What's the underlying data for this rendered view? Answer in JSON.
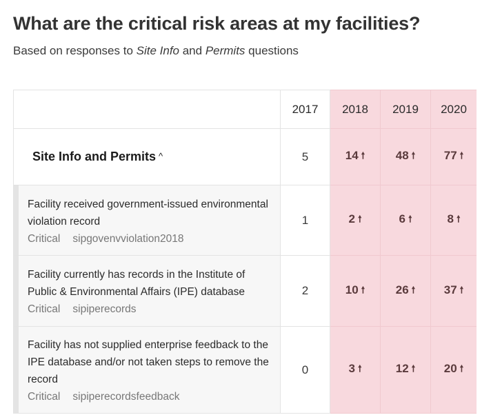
{
  "header": {
    "title": "What are the critical risk areas at my facilities?",
    "subtitle_prefix": "Based on responses to ",
    "subtitle_em1": "Site Info",
    "subtitle_mid": " and ",
    "subtitle_em2": "Permits",
    "subtitle_suffix": " questions"
  },
  "table": {
    "years": [
      "2017",
      "2018",
      "2019",
      "2020"
    ],
    "highlight_color": "#f8d9de",
    "trend_icon": "arrow-up-icon",
    "group": {
      "label": "Site Info and Permits",
      "caret": "^",
      "values": [
        "5",
        "14",
        "48",
        "77"
      ]
    },
    "rows": [
      {
        "text": "Facility received government-issued environmental violation record",
        "severity": "Critical",
        "code": "sipgovenvviolation2018",
        "values": [
          "1",
          "2",
          "6",
          "8"
        ]
      },
      {
        "text": "Facility currently has records in the Institute of Public & Environmental Affairs (IPE) database",
        "severity": "Critical",
        "code": "sipiperecords",
        "values": [
          "2",
          "10",
          "26",
          "37"
        ]
      },
      {
        "text": "Facility has not supplied enterprise feedback to the IPE database and/or not taken steps to remove the record",
        "severity": "Critical",
        "code": "sipiperecordsfeedback",
        "values": [
          "0",
          "3",
          "12",
          "20"
        ]
      }
    ]
  }
}
